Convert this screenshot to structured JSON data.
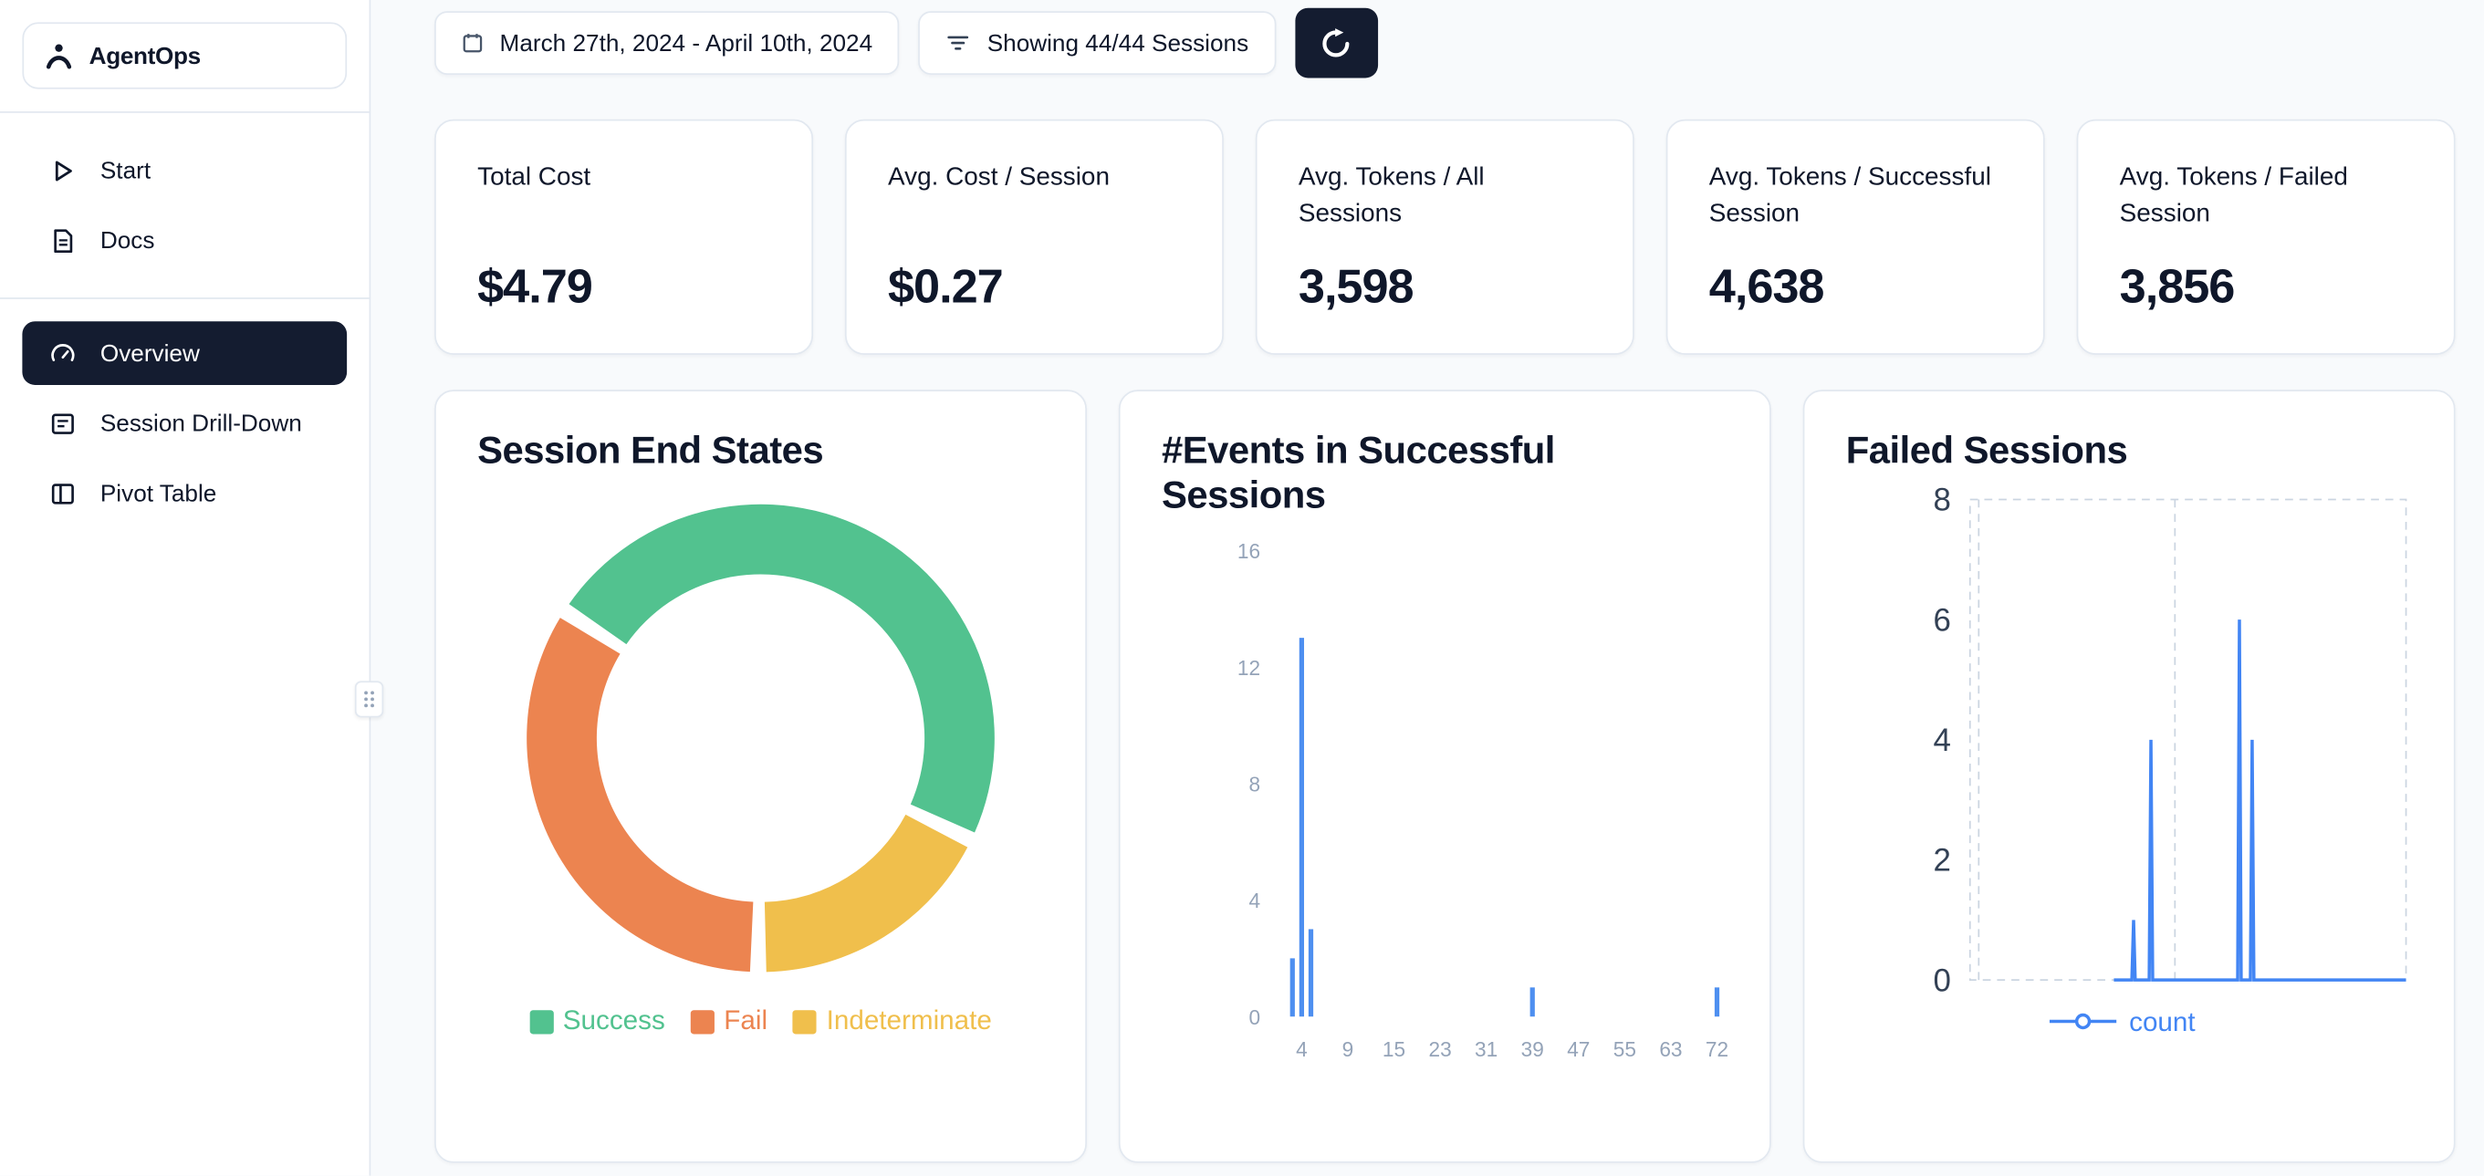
{
  "sidebar": {
    "logo_text": "AgentOps",
    "nav_top": [
      {
        "label": "Start",
        "icon": "play-icon"
      },
      {
        "label": "Docs",
        "icon": "docs-icon"
      }
    ],
    "nav_main": [
      {
        "label": "Overview",
        "icon": "gauge-icon",
        "active": true
      },
      {
        "label": "Session Drill-Down",
        "icon": "session-drilldown-icon",
        "active": false
      },
      {
        "label": "Pivot Table",
        "icon": "pivot-table-icon",
        "active": false
      }
    ]
  },
  "topbar": {
    "date_range": "March 27th, 2024 - April 10th, 2024",
    "date_icon": "calendar-icon",
    "filter_label": "Showing 44/44 Sessions",
    "filter_icon": "filter-icon",
    "refresh_icon": "refresh-icon"
  },
  "stats": [
    {
      "label": "Total Cost",
      "value": "$4.79"
    },
    {
      "label": "Avg. Cost / Session",
      "value": "$0.27"
    },
    {
      "label": "Avg. Tokens / All Sessions",
      "value": "3,598"
    },
    {
      "label": "Avg. Tokens / Successful Session",
      "value": "4,638"
    },
    {
      "label": "Avg. Tokens / Failed Session",
      "value": "3,856"
    }
  ],
  "colors": {
    "background": "#f8fafc",
    "surface": "#ffffff",
    "border": "#e2e8f0",
    "text": "#0f172a",
    "muted_text": "#94a3b8",
    "dark_accent": "#141c30",
    "bar_blue": "#4e8ff0",
    "line_blue": "#4285f4",
    "success_green": "#52c28f",
    "fail_orange": "#ec8450",
    "indeterminate_yellow": "#f0bf4c"
  },
  "chart_data": [
    {
      "type": "pie",
      "donut": true,
      "title": "Session End States",
      "labels": [
        "Success",
        "Fail",
        "Indeterminate"
      ],
      "values_pct": [
        48,
        34,
        18
      ],
      "colors": [
        "#52c28f",
        "#ec8450",
        "#f0bf4c"
      ],
      "start_angle_deg": 303,
      "legend_position": "bottom"
    },
    {
      "type": "bar",
      "title": "#Events in Successful Sessions",
      "x": [
        3,
        4,
        5,
        39,
        72
      ],
      "values": [
        2,
        13,
        3,
        1,
        1
      ],
      "xticks": [
        4,
        9,
        15,
        23,
        31,
        39,
        47,
        55,
        63,
        72
      ],
      "yticks": [
        0,
        4,
        8,
        12,
        16
      ],
      "ylim": [
        0,
        16
      ],
      "bar_color": "#4e8ff0",
      "grid": false
    },
    {
      "type": "line",
      "title": "Failed Sessions",
      "series": [
        {
          "name": "count",
          "color": "#4285f4",
          "points": [
            [
              0.33,
              0
            ],
            [
              0.371,
              0
            ],
            [
              0.375,
              1
            ],
            [
              0.379,
              0
            ],
            [
              0.411,
              0
            ],
            [
              0.415,
              4
            ],
            [
              0.419,
              0
            ],
            [
              0.614,
              0
            ],
            [
              0.618,
              6
            ],
            [
              0.622,
              0
            ],
            [
              0.643,
              0
            ],
            [
              0.647,
              4
            ],
            [
              0.651,
              0
            ],
            [
              1,
              0
            ]
          ]
        }
      ],
      "yticks": [
        0,
        2,
        4,
        6,
        8
      ],
      "ylim": [
        0,
        8
      ],
      "grid": "dashed",
      "grid_vlines": [
        0.02,
        0.47
      ],
      "legend_position": "bottom"
    }
  ]
}
